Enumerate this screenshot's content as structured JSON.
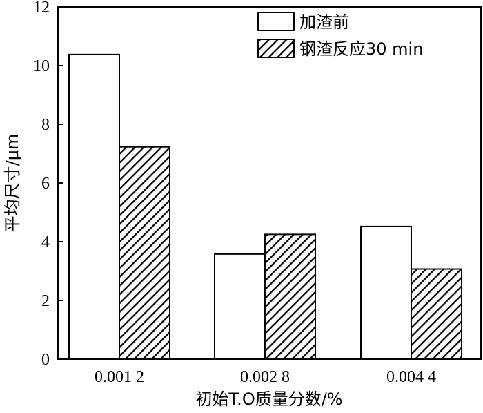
{
  "chart_data": {
    "type": "bar",
    "categories": [
      "0.001 2",
      "0.002 8",
      "0.004 4"
    ],
    "series": [
      {
        "name": "加渣前",
        "values": [
          10.38,
          3.58,
          4.52
        ],
        "fill": "white"
      },
      {
        "name": "钢渣反应30 min",
        "values": [
          7.23,
          4.25,
          3.07
        ],
        "fill": "hatched"
      }
    ],
    "xlabel": "初始T.O质量分数/%",
    "ylabel": "平均尺寸/μm",
    "ylim": [
      0,
      12
    ],
    "yticks": [
      0,
      2,
      4,
      6,
      8,
      10,
      12
    ],
    "grid": false,
    "legend_position": "top-right",
    "colors": {
      "stroke": "#000000",
      "background": "#ffffff"
    }
  }
}
